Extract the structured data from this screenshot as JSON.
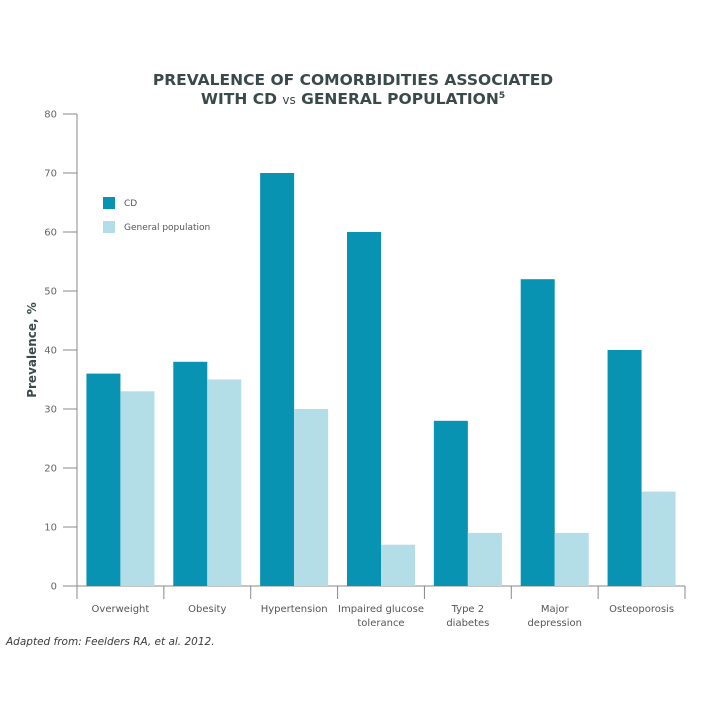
{
  "chart_data": {
    "type": "bar",
    "title_line1": "PREVALENCE OF COMORBIDITIES ASSOCIATED",
    "title_line2_a": "WITH CD ",
    "title_line2_vs": "vs",
    "title_line2_b": " GENERAL POPULATION",
    "title_superscript": "5",
    "ylabel": "Prevalence, %",
    "xlabel": "",
    "ylim": [
      0,
      80
    ],
    "yticks": [
      0,
      10,
      20,
      30,
      40,
      50,
      60,
      70,
      80
    ],
    "categories": [
      [
        "Overweight"
      ],
      [
        "Obesity"
      ],
      [
        "Hypertension"
      ],
      [
        "Impaired glucose",
        "tolerance"
      ],
      [
        "Type 2",
        "diabetes"
      ],
      [
        "Major",
        "depression"
      ],
      [
        "Osteoporosis"
      ]
    ],
    "series": [
      {
        "name": "CD",
        "color": "#0893b3",
        "values": [
          36,
          38,
          70,
          60,
          28,
          52,
          40
        ]
      },
      {
        "name": "General population",
        "color": "#b3dde7",
        "values": [
          33,
          35,
          30,
          7,
          9,
          9,
          16
        ]
      }
    ],
    "legend_position": "top-left",
    "grid": false
  },
  "source": "Adapted from: Feelders RA, et al. 2012."
}
